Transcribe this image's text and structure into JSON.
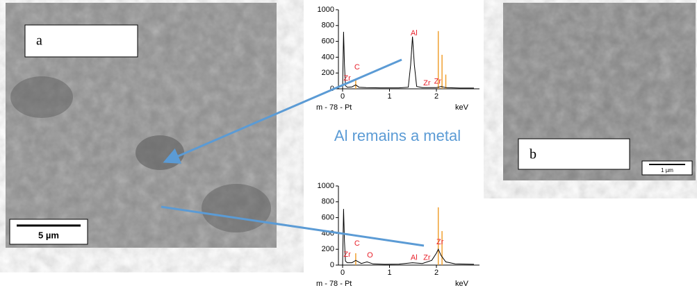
{
  "images": {
    "a": {
      "label": "a",
      "scale_bar": "5 µm"
    },
    "b": {
      "label": "b",
      "scale_bar": "1 µm"
    }
  },
  "annotation": "Al remains a metal",
  "chart_data": [
    {
      "type": "line",
      "title": "m - 78 - Pt",
      "xlabel": "keV",
      "xlim": [
        0,
        2.8
      ],
      "xticks": [
        0,
        1,
        2
      ],
      "ylim": [
        0,
        1000
      ],
      "yticks": [
        0,
        200,
        400,
        600,
        800,
        1000
      ],
      "series": [
        {
          "color": "#000000",
          "x": [
            0,
            0.02,
            0.04,
            0.06,
            0.1,
            0.2,
            0.28,
            0.35,
            0.5,
            0.8,
            1.2,
            1.4,
            1.45,
            1.49,
            1.53,
            1.58,
            1.7,
            2.0,
            2.04,
            2.1,
            2.2,
            2.5,
            2.8
          ],
          "values": [
            0,
            720,
            300,
            40,
            20,
            25,
            50,
            20,
            15,
            12,
            12,
            20,
            300,
            660,
            300,
            30,
            15,
            15,
            20,
            30,
            15,
            10,
            10
          ]
        }
      ],
      "markers": {
        "color": "#f0a030",
        "x": [
          0.28,
          2.04,
          2.12,
          2.2
        ],
        "values": [
          120,
          730,
          430,
          180
        ]
      },
      "annotations": [
        "Zr",
        "C",
        "Al",
        "Zr",
        "Zr"
      ],
      "annotation_color": "#e8202a"
    },
    {
      "type": "line",
      "title": "m - 78 - Pt",
      "xlabel": "keV",
      "xlim": [
        0,
        2.8
      ],
      "xticks": [
        0,
        1,
        2
      ],
      "ylim": [
        0,
        1000
      ],
      "yticks": [
        0,
        200,
        400,
        600,
        800,
        1000
      ],
      "series": [
        {
          "color": "#000000",
          "x": [
            0,
            0.02,
            0.04,
            0.06,
            0.1,
            0.2,
            0.28,
            0.4,
            0.52,
            0.65,
            0.9,
            1.2,
            1.49,
            1.7,
            1.9,
            2.0,
            2.04,
            2.1,
            2.2,
            2.4,
            2.8
          ],
          "values": [
            0,
            710,
            300,
            50,
            30,
            30,
            60,
            20,
            40,
            15,
            10,
            12,
            30,
            20,
            60,
            150,
            200,
            120,
            40,
            15,
            10
          ]
        }
      ],
      "markers": {
        "color": "#f0a030",
        "x": [
          0.28,
          2.04,
          2.12
        ],
        "values": [
          150,
          730,
          430
        ]
      },
      "annotations": [
        "Zr",
        "C",
        "O",
        "Al",
        "Zr",
        "Zr"
      ],
      "annotation_color": "#e8202a"
    }
  ]
}
